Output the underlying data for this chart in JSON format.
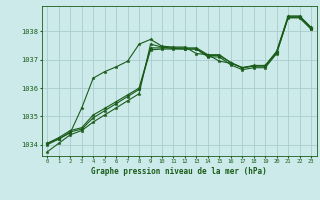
{
  "bg_color": "#cceaea",
  "grid_color": "#aacccc",
  "line_color": "#1a5c1a",
  "marker_color": "#1a5c1a",
  "title": "Graphe pression niveau de la mer (hPa)",
  "xlim": [
    -0.5,
    23.5
  ],
  "ylim": [
    1033.6,
    1038.9
  ],
  "yticks": [
    1034,
    1035,
    1036,
    1037,
    1038
  ],
  "xticks": [
    0,
    1,
    2,
    3,
    4,
    5,
    6,
    7,
    8,
    9,
    10,
    11,
    12,
    13,
    14,
    15,
    16,
    17,
    18,
    19,
    20,
    21,
    22,
    23
  ],
  "series": [
    [
      1033.75,
      1034.05,
      1034.35,
      1034.5,
      1034.8,
      1035.05,
      1035.3,
      1035.55,
      1035.8,
      1037.55,
      1037.45,
      1037.4,
      1037.38,
      1037.38,
      1037.15,
      1037.15,
      1036.9,
      1036.72,
      1036.8,
      1036.8,
      1037.3,
      1038.55,
      1038.55,
      1038.15
    ],
    [
      1034.0,
      1034.2,
      1034.45,
      1034.55,
      1034.95,
      1035.2,
      1035.45,
      1035.7,
      1035.95,
      1037.35,
      1037.38,
      1037.38,
      1037.38,
      1037.38,
      1037.1,
      1037.1,
      1036.82,
      1036.65,
      1036.72,
      1036.72,
      1037.22,
      1038.48,
      1038.48,
      1038.08
    ],
    [
      1034.05,
      1034.25,
      1034.5,
      1034.6,
      1035.05,
      1035.28,
      1035.52,
      1035.76,
      1036.0,
      1037.42,
      1037.42,
      1037.42,
      1037.42,
      1037.42,
      1037.18,
      1037.18,
      1036.9,
      1036.72,
      1036.78,
      1036.78,
      1037.28,
      1038.52,
      1038.52,
      1038.12
    ],
    [
      1034.05,
      1034.2,
      1034.42,
      1035.3,
      1036.35,
      1036.58,
      1036.75,
      1036.95,
      1037.55,
      1037.72,
      1037.48,
      1037.45,
      1037.45,
      1037.22,
      1037.18,
      1036.95,
      1036.88,
      1036.72,
      1036.78,
      1036.78,
      1037.25,
      1038.5,
      1038.5,
      1038.1
    ]
  ]
}
